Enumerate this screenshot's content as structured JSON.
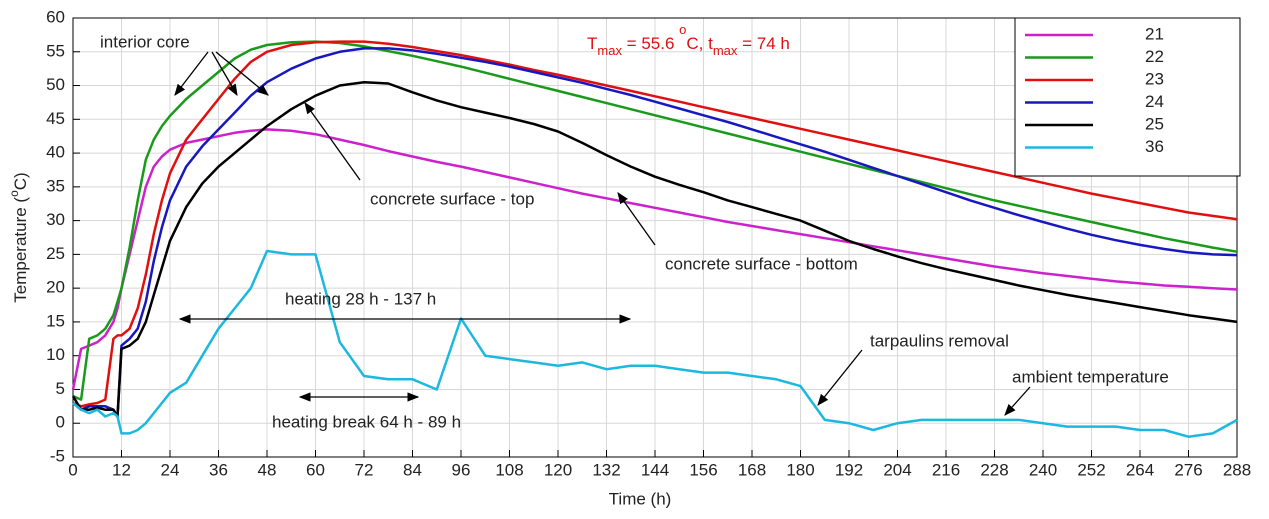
{
  "chart_data": {
    "type": "line",
    "ylabel": [
      "Temperature (",
      "o",
      "C)"
    ],
    "xlabel": "Time (h)",
    "annotations": [
      "interior core",
      "concrete surface - top",
      "concrete surface - bottom",
      "heating 28 h - 137 h",
      "heating break 64 h - 89 h",
      "tarpaulins removal",
      "ambient temperature"
    ],
    "tmax_label": [
      "T",
      "max",
      " = 55.6 ",
      "o",
      "C, t",
      "max",
      " = 74 h"
    ],
    "x": [
      0,
      2,
      4,
      6,
      8,
      10,
      11,
      12,
      14,
      16,
      18,
      20,
      22,
      24,
      28,
      32,
      36,
      40,
      44,
      48,
      54,
      60,
      66,
      72,
      78,
      84,
      90,
      96,
      102,
      108,
      114,
      120,
      126,
      132,
      138,
      144,
      150,
      156,
      162,
      168,
      174,
      180,
      186,
      192,
      198,
      204,
      210,
      216,
      222,
      228,
      234,
      240,
      246,
      252,
      258,
      264,
      270,
      276,
      282,
      288
    ],
    "series": [
      {
        "name": "21",
        "color": "#cc22cc",
        "values": [
          5,
          11,
          11.5,
          12,
          13,
          15,
          17,
          20,
          25,
          30,
          35,
          38,
          39.5,
          40.5,
          41.5,
          42,
          42.5,
          43,
          43.3,
          43.5,
          43.3,
          42.8,
          42,
          41.2,
          40.3,
          39.5,
          38.7,
          38,
          37.2,
          36.4,
          35.6,
          34.8,
          34,
          33.3,
          32.6,
          31.9,
          31.2,
          30.5,
          29.8,
          29.2,
          28.6,
          28,
          27.4,
          26.8,
          26.2,
          25.6,
          25,
          24.4,
          23.8,
          23.2,
          22.7,
          22.2,
          21.8,
          21.4,
          21,
          20.7,
          20.4,
          20.2,
          20,
          19.8
        ]
      },
      {
        "name": "22",
        "color": "#1a9a1a",
        "values": [
          4,
          3.5,
          12.5,
          13,
          14,
          16,
          18,
          20,
          26,
          33,
          39,
          42,
          44,
          45.5,
          48,
          50,
          52,
          54,
          55.3,
          56,
          56.4,
          56.5,
          56.3,
          55.8,
          55.1,
          54.4,
          53.6,
          52.8,
          51.9,
          51,
          50.1,
          49.2,
          48.3,
          47.4,
          46.5,
          45.6,
          44.7,
          43.8,
          42.9,
          42,
          41.1,
          40.2,
          39.3,
          38.4,
          37.5,
          36.6,
          35.7,
          34.8,
          33.9,
          33,
          32.2,
          31.4,
          30.6,
          29.8,
          29,
          28.2,
          27.4,
          26.7,
          26,
          25.4
        ]
      },
      {
        "name": "23",
        "color": "#e01010",
        "values": [
          3,
          2.5,
          2.8,
          3,
          3.5,
          12.5,
          13,
          13,
          14,
          17,
          22,
          28,
          33,
          37,
          42,
          45,
          48,
          51,
          53.5,
          55,
          56,
          56.4,
          56.5,
          56.5,
          56.2,
          55.7,
          55.1,
          54.5,
          53.8,
          53.1,
          52.3,
          51.6,
          50.8,
          50,
          49.2,
          48.4,
          47.6,
          46.8,
          46,
          45.2,
          44.4,
          43.6,
          42.8,
          42,
          41.2,
          40.4,
          39.6,
          38.8,
          38,
          37.2,
          36.4,
          35.6,
          34.8,
          34,
          33.3,
          32.6,
          31.9,
          31.2,
          30.7,
          30.2
        ]
      },
      {
        "name": "24",
        "color": "#1818c0",
        "values": [
          3,
          2,
          2.5,
          2.5,
          2.5,
          2,
          1,
          11.5,
          12.5,
          14,
          18,
          24,
          29,
          33,
          38,
          41,
          43.5,
          46,
          48.5,
          50.5,
          52.5,
          54,
          55,
          55.5,
          55.5,
          55.2,
          54.7,
          54.1,
          53.5,
          52.8,
          52,
          51.2,
          50.4,
          49.5,
          48.6,
          47.6,
          46.6,
          45.6,
          44.6,
          43.5,
          42.4,
          41.3,
          40.2,
          39,
          37.8,
          36.6,
          35.4,
          34.2,
          33,
          31.9,
          30.8,
          29.8,
          28.8,
          27.9,
          27.1,
          26.4,
          25.8,
          25.3,
          25,
          24.9
        ]
      },
      {
        "name": "25",
        "color": "#000000",
        "values": [
          4,
          2,
          2,
          2.3,
          2,
          2,
          1,
          11,
          11.5,
          12.5,
          15,
          19,
          23,
          27,
          32,
          35.5,
          38,
          40,
          42,
          44,
          46.5,
          48.5,
          50,
          50.5,
          50.3,
          49,
          47.8,
          46.8,
          46,
          45.2,
          44.3,
          43.2,
          41.5,
          39.7,
          38,
          36.5,
          35.3,
          34.2,
          33,
          32,
          31,
          30,
          28.5,
          27,
          25.8,
          24.7,
          23.7,
          22.8,
          22,
          21.2,
          20.4,
          19.7,
          19,
          18.4,
          17.8,
          17.2,
          16.6,
          16,
          15.5,
          15
        ]
      },
      {
        "name": "36",
        "color": "#1cb8e0",
        "values": [
          3,
          2,
          1.5,
          2,
          1,
          1.5,
          1,
          -1.5,
          -1.5,
          -1,
          0,
          1.5,
          3,
          4.5,
          6,
          10,
          14,
          17,
          20,
          25.5,
          25,
          25,
          12,
          7,
          6.5,
          6.5,
          5,
          15.5,
          10,
          9.5,
          9,
          8.5,
          9,
          8,
          8.5,
          8.5,
          8,
          7.5,
          7.5,
          7,
          6.5,
          5.5,
          0.5,
          0,
          -1,
          0,
          0.5,
          0.5,
          0.5,
          0.5,
          0.5,
          0,
          -0.5,
          -0.5,
          -0.5,
          -1,
          -1,
          -2,
          -1.5,
          0.5
        ]
      }
    ],
    "xlim": [
      0,
      288
    ],
    "xticks": [
      0,
      12,
      24,
      36,
      48,
      60,
      72,
      84,
      96,
      108,
      120,
      132,
      144,
      156,
      168,
      180,
      192,
      204,
      216,
      228,
      240,
      252,
      264,
      276,
      288
    ],
    "ylim": [
      -5,
      60
    ],
    "yticks": [
      -5,
      0,
      5,
      10,
      15,
      20,
      25,
      30,
      35,
      40,
      45,
      50,
      55,
      60
    ],
    "grid": true,
    "legend": "northeast"
  }
}
